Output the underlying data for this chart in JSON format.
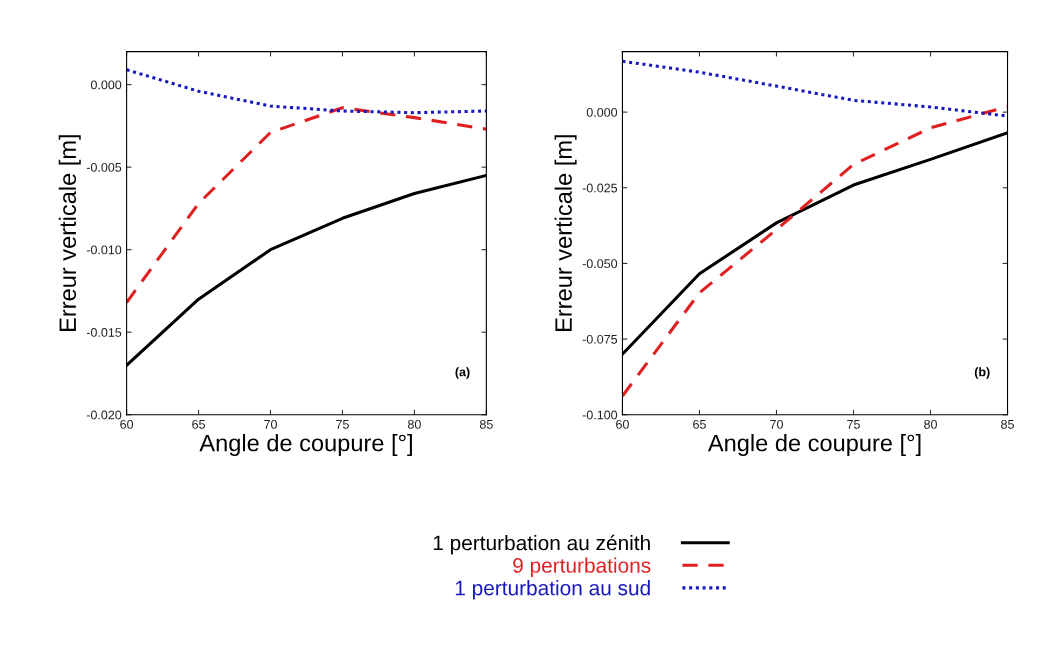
{
  "chart_data": [
    {
      "type": "line",
      "xlabel": "Angle de coupure [°]",
      "ylabel": "Erreur verticale [m]",
      "x": [
        60,
        65,
        70,
        75,
        80,
        85
      ],
      "xlim": [
        60,
        85
      ],
      "xticks": [
        60,
        65,
        70,
        75,
        80,
        85
      ],
      "ylim": [
        -0.02,
        0.002
      ],
      "yticks": [
        {
          "value": -0.02,
          "label": "-0.020"
        },
        {
          "value": -0.015,
          "label": "-0.015"
        },
        {
          "value": -0.01,
          "label": "-0.010"
        },
        {
          "value": -0.005,
          "label": "-0.005"
        },
        {
          "value": 0,
          "label": "0.000"
        }
      ],
      "grid": false,
      "legend": "bottom",
      "annotations": [
        "(a)"
      ],
      "series": [
        {
          "name": "1 perturbation au zénith",
          "color": "#000000",
          "line_style": "solid",
          "values": [
            -0.017,
            -0.013,
            -0.01,
            -0.0081,
            -0.0066,
            -0.0055
          ]
        },
        {
          "name": "9 perturbations",
          "color": "#e02020",
          "line_style": "dashed",
          "values": [
            -0.0132,
            -0.0072,
            -0.0029,
            -0.0014,
            -0.002,
            -0.0027
          ]
        },
        {
          "name": "1 perturbation au sud",
          "color": "#1818c0",
          "line_style": "dotted",
          "values": [
            0.0009,
            -0.0004,
            -0.0013,
            -0.0016,
            -0.0017,
            -0.0016
          ]
        }
      ]
    },
    {
      "type": "line",
      "xlabel": "Angle de coupure [°]",
      "ylabel": "Erreur verticale [m]",
      "x": [
        60,
        65,
        70,
        75,
        80,
        85
      ],
      "xlim": [
        60,
        85
      ],
      "xticks": [
        60,
        65,
        70,
        75,
        80,
        85
      ],
      "ylim": [
        -0.1,
        0.02
      ],
      "yticks": [
        {
          "value": -0.1,
          "label": "-0.100"
        },
        {
          "value": -0.075,
          "label": "-0.075"
        },
        {
          "value": -0.05,
          "label": "-0.050"
        },
        {
          "value": -0.025,
          "label": "-0.025"
        },
        {
          "value": 0,
          "label": "0.000"
        }
      ],
      "grid": false,
      "legend": "bottom",
      "annotations": [
        "(b)"
      ],
      "series": [
        {
          "name": "1 perturbation au zénith",
          "color": "#000000",
          "line_style": "solid",
          "values": [
            -0.08,
            -0.0534,
            -0.0366,
            -0.0241,
            -0.0156,
            -0.0068
          ]
        },
        {
          "name": "9 perturbations",
          "color": "#e02020",
          "line_style": "dashed",
          "values": [
            -0.0938,
            -0.0597,
            -0.0388,
            -0.0173,
            -0.0052,
            0.0018
          ]
        },
        {
          "name": "1 perturbation au sud",
          "color": "#1818c0",
          "line_style": "dotted",
          "values": [
            0.0168,
            0.0132,
            0.0086,
            0.0039,
            0.0017,
            -0.0013
          ]
        }
      ]
    }
  ]
}
